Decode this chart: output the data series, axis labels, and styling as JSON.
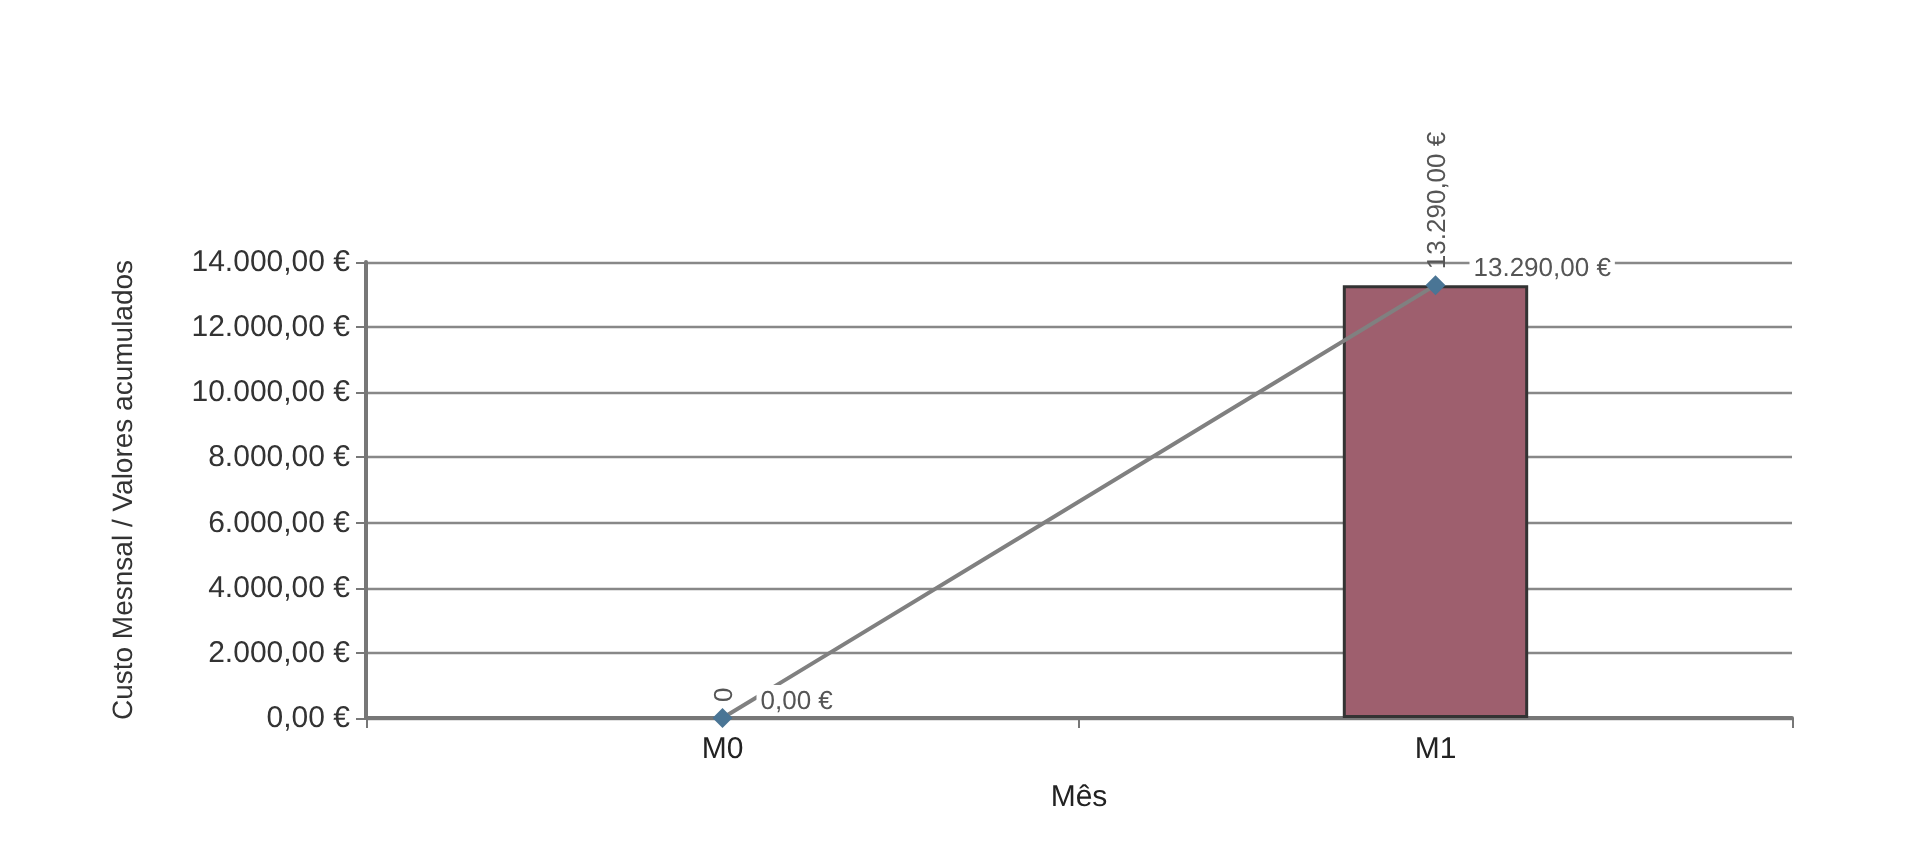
{
  "chart_data": {
    "type": "bar",
    "xlabel": "Mês",
    "ylabel": "Custo Mesnsal / Valores acumulados",
    "categories": [
      "M0",
      "M1"
    ],
    "series": [
      {
        "color": "#9e5f6e",
        "values": [
          0,
          13290
        ],
        "value_labels": [
          "0",
          "13.290,00 €"
        ]
      },
      {
        "type": "line",
        "color": "#4a7595",
        "marker": "diamond",
        "values": [
          0,
          13290
        ],
        "value_labels": [
          "0,00 €",
          "13.290,00 €"
        ]
      }
    ],
    "ylim": [
      0,
      14000
    ],
    "yticks": [
      {
        "value": 0,
        "label": "0,00 €"
      },
      {
        "value": 2000,
        "label": "2.000,00 €"
      },
      {
        "value": 4000,
        "label": "4.000,00 €"
      },
      {
        "value": 6000,
        "label": "6.000,00 €"
      },
      {
        "value": 8000,
        "label": "8.000,00 €"
      },
      {
        "value": 10000,
        "label": "10.000,00 €"
      },
      {
        "value": 12000,
        "label": "12.000,00 €"
      },
      {
        "value": 14000,
        "label": "14.000,00 €"
      }
    ],
    "grid": "y"
  }
}
